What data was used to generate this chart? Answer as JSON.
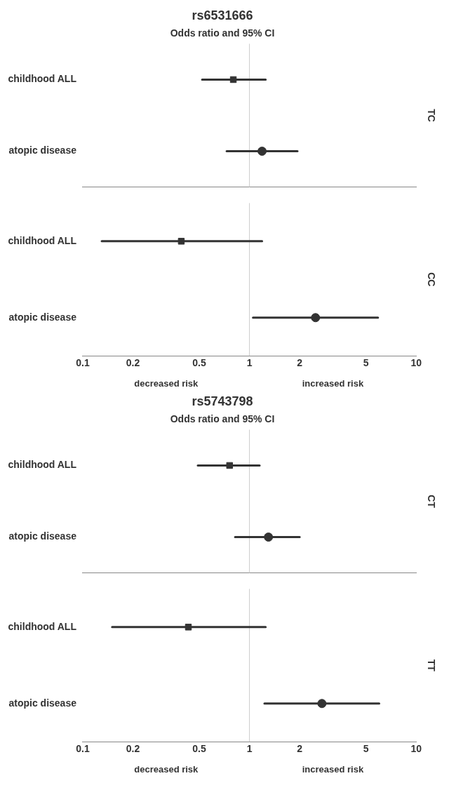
{
  "chart_data": [
    {
      "type": "scatter",
      "orientation": "horizontal",
      "title": "rs6531666",
      "subtitle": "Odds ratio and 95% CI",
      "y2label": "TC",
      "categories": [
        "childhood ALL",
        "atopic disease"
      ],
      "log": "x",
      "xlim": [
        0.1,
        10
      ],
      "xticks": [
        0.1,
        0.2,
        0.5,
        1,
        2,
        5,
        10
      ],
      "tick_labels": "y",
      "legend": false,
      "ref_lines": [
        {
          "axis": "x",
          "value": 1,
          "color": "#cccccc"
        }
      ],
      "series": [
        {
          "color": "#333333",
          "marker": "square",
          "values": [
            0.8,
            null
          ],
          "errors": [
            [
              0.52,
              1.25
            ],
            null
          ]
        },
        {
          "color": "#333333",
          "marker": "circle",
          "values": [
            null,
            1.19
          ],
          "errors": [
            null,
            [
              0.73,
              1.94
            ]
          ]
        }
      ]
    },
    {
      "type": "scatter",
      "orientation": "horizontal",
      "y2label": "CC",
      "categories": [
        "childhood ALL",
        "atopic disease"
      ],
      "log": "x",
      "xlim": [
        0.1,
        10
      ],
      "xticks": [
        0.1,
        0.2,
        0.5,
        1,
        2,
        5,
        10
      ],
      "legend": false,
      "ref_lines": [
        {
          "axis": "x",
          "value": 1,
          "color": "#cccccc"
        }
      ],
      "annotations": [
        "decreased risk",
        "increased risk"
      ],
      "series": [
        {
          "color": "#333333",
          "marker": "square",
          "values": [
            0.39,
            null
          ],
          "errors": [
            [
              0.13,
              1.19
            ],
            null
          ]
        },
        {
          "color": "#333333",
          "marker": "circle",
          "values": [
            null,
            2.49
          ],
          "errors": [
            null,
            [
              1.05,
              5.9
            ]
          ]
        }
      ]
    },
    {
      "type": "scatter",
      "orientation": "horizontal",
      "title": "rs5743798",
      "subtitle": "Odds ratio and 95% CI",
      "y2label": "CT",
      "categories": [
        "childhood ALL",
        "atopic disease"
      ],
      "log": "x",
      "xlim": [
        0.1,
        10
      ],
      "xticks": [
        0.1,
        0.2,
        0.5,
        1,
        2,
        5,
        10
      ],
      "tick_labels": "y",
      "legend": false,
      "ref_lines": [
        {
          "axis": "x",
          "value": 1,
          "color": "#cccccc"
        }
      ],
      "series": [
        {
          "color": "#333333",
          "marker": "square",
          "values": [
            0.76,
            null
          ],
          "errors": [
            [
              0.49,
              1.15
            ],
            null
          ]
        },
        {
          "color": "#333333",
          "marker": "circle",
          "values": [
            null,
            1.3
          ],
          "errors": [
            null,
            [
              0.82,
              2.0
            ]
          ]
        }
      ]
    },
    {
      "type": "scatter",
      "orientation": "horizontal",
      "y2label": "TT",
      "categories": [
        "childhood ALL",
        "atopic disease"
      ],
      "log": "x",
      "xlim": [
        0.1,
        10
      ],
      "xticks": [
        0.1,
        0.2,
        0.5,
        1,
        2,
        5,
        10
      ],
      "legend": false,
      "ref_lines": [
        {
          "axis": "x",
          "value": 1,
          "color": "#cccccc"
        }
      ],
      "annotations": [
        "decreased risk",
        "increased risk"
      ],
      "series": [
        {
          "color": "#333333",
          "marker": "square",
          "values": [
            0.43,
            null
          ],
          "errors": [
            [
              0.15,
              1.25
            ],
            null
          ]
        },
        {
          "color": "#333333",
          "marker": "circle",
          "values": [
            null,
            2.72
          ],
          "errors": [
            null,
            [
              1.23,
              6.0
            ]
          ]
        }
      ]
    }
  ]
}
